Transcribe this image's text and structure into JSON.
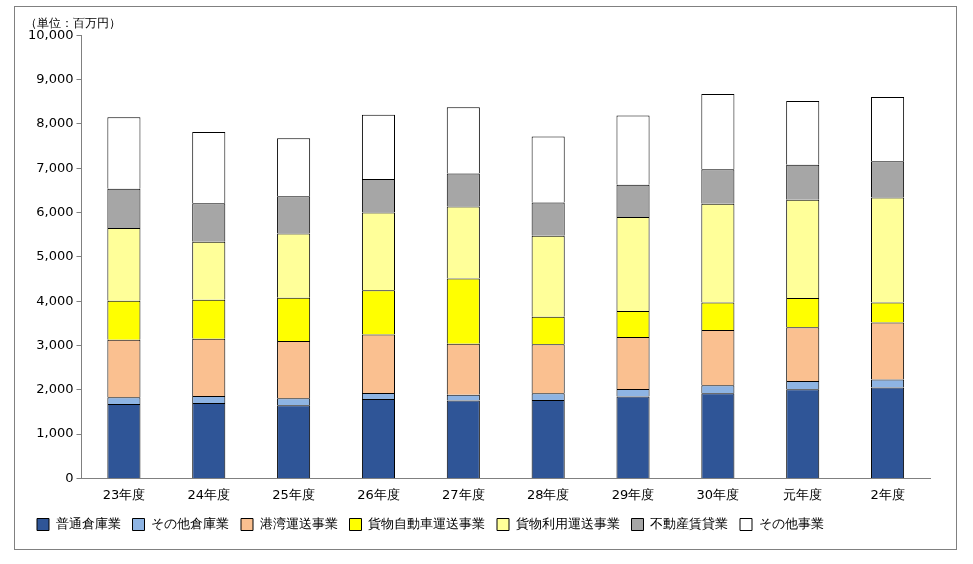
{
  "chart_data": {
    "type": "bar",
    "y_label": "（単位：百万円）",
    "categories": [
      "23年度",
      "24年度",
      "25年度",
      "26年度",
      "27年度",
      "28年度",
      "29年度",
      "30年度",
      "元年度",
      "2年度"
    ],
    "stacked": true,
    "grid": false,
    "legend": "bottom",
    "ylim": [
      0,
      10000
    ],
    "yticks": [
      0,
      {
        "value": 1000,
        "label": "1,000"
      },
      {
        "value": 2000,
        "label": "2,000"
      },
      {
        "value": 3000,
        "label": "3,000"
      },
      {
        "value": 4000,
        "label": "4,000"
      },
      {
        "value": 5000,
        "label": "5,000"
      },
      {
        "value": 6000,
        "label": "6,000"
      },
      {
        "value": 7000,
        "label": "7,000"
      },
      {
        "value": 8000,
        "label": "8,000"
      },
      {
        "value": 9000,
        "label": "9,000"
      },
      {
        "value": 10000,
        "label": "10,000"
      }
    ],
    "series": [
      {
        "name": "普通倉庫業",
        "color": "#2f5597",
        "values": [
          1680,
          1700,
          1650,
          1790,
          1760,
          1770,
          1850,
          1920,
          2010,
          2050
        ]
      },
      {
        "name": "その他倉庫業",
        "color": "#8eb4e3",
        "values": [
          150,
          160,
          160,
          140,
          130,
          150,
          170,
          180,
          190,
          180
        ]
      },
      {
        "name": "港湾運送事業",
        "color": "#fac090",
        "values": [
          1300,
          1290,
          1290,
          1320,
          1150,
          1110,
          1170,
          1250,
          1210,
          1290
        ]
      },
      {
        "name": "貨物自動車運送事業",
        "color": "#ffff00",
        "values": [
          880,
          880,
          980,
          1000,
          1470,
          620,
          590,
          620,
          660,
          450
        ]
      },
      {
        "name": "貨物利用運送事業",
        "color": "#ffff99",
        "values": [
          1640,
          1310,
          1450,
          1750,
          1630,
          1830,
          2120,
          2230,
          2220,
          2370
        ]
      },
      {
        "name": "不動産賃貸業",
        "color": "#a6a6a6",
        "values": [
          890,
          870,
          840,
          760,
          740,
          750,
          730,
          780,
          790,
          820
        ]
      },
      {
        "name": "その他事業",
        "color": "#ffffff",
        "values": [
          1610,
          1610,
          1310,
          1450,
          1500,
          1490,
          1560,
          1700,
          1440,
          1450
        ]
      }
    ]
  }
}
